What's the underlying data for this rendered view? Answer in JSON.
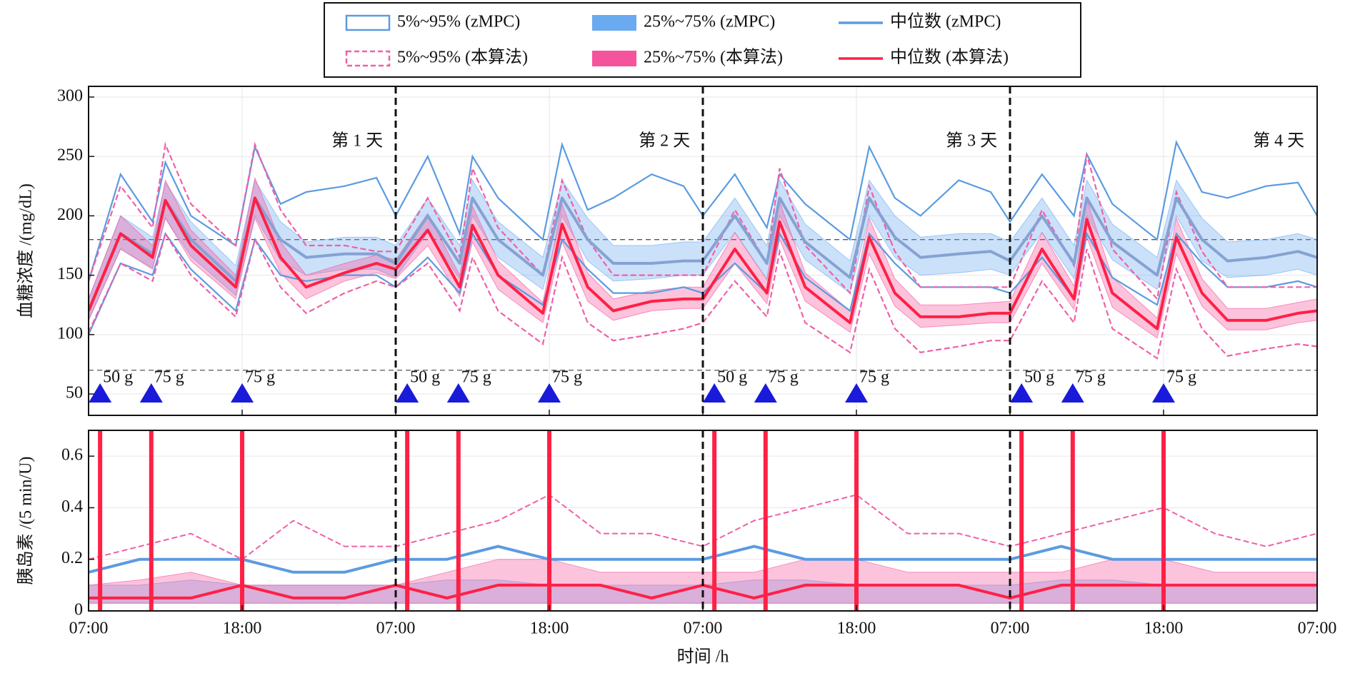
{
  "chart_data": [
    {
      "type": "line",
      "ylabel": "血糖浓度 /(mg/dL)",
      "xlim": [
        0,
        96
      ],
      "ylim": [
        32,
        309
      ],
      "xticks": [
        0,
        12,
        24,
        36,
        48,
        60,
        72,
        84,
        96
      ],
      "yticks": [
        50,
        100,
        150,
        200,
        250,
        300
      ],
      "grid": true,
      "x": [
        0,
        2.5,
        5,
        6,
        8,
        11.5,
        13,
        15,
        17,
        20,
        22.5,
        24,
        26.5,
        29,
        30,
        32,
        35.5,
        37,
        39,
        41,
        44,
        46.5,
        48,
        50.5,
        53,
        54,
        56,
        59.5,
        61,
        63,
        65,
        68,
        70.5,
        72,
        74.5,
        77,
        78,
        80,
        83.5,
        85,
        87,
        89,
        92,
        94.5,
        96
      ],
      "series": [
        {
          "name": "5%~95% (zMPC)",
          "style": "outline",
          "color": "#5b9be0",
          "low": [
            100,
            160,
            150,
            185,
            155,
            120,
            180,
            150,
            145,
            150,
            150,
            140,
            165,
            135,
            185,
            150,
            125,
            180,
            155,
            135,
            135,
            140,
            135,
            160,
            135,
            185,
            148,
            120,
            185,
            160,
            140,
            140,
            140,
            135,
            165,
            130,
            185,
            148,
            125,
            185,
            160,
            140,
            140,
            145,
            140
          ],
          "high": [
            145,
            235,
            195,
            245,
            200,
            175,
            258,
            210,
            220,
            225,
            232,
            200,
            250,
            185,
            250,
            215,
            180,
            260,
            205,
            215,
            235,
            225,
            200,
            235,
            190,
            235,
            210,
            180,
            258,
            215,
            200,
            230,
            220,
            195,
            235,
            200,
            252,
            210,
            180,
            262,
            220,
            215,
            225,
            228,
            200
          ]
        },
        {
          "name": "25%~75% (zMPC)",
          "style": "fill",
          "color": "#6aaaf0",
          "low": [
            112,
            172,
            156,
            198,
            166,
            133,
            200,
            162,
            150,
            155,
            155,
            148,
            186,
            147,
            200,
            165,
            138,
            200,
            162,
            145,
            147,
            150,
            150,
            186,
            147,
            200,
            163,
            135,
            200,
            165,
            150,
            152,
            155,
            150,
            186,
            147,
            200,
            163,
            138,
            200,
            162,
            148,
            150,
            155,
            150
          ],
          "high": [
            130,
            200,
            182,
            228,
            195,
            158,
            230,
            195,
            178,
            182,
            182,
            175,
            215,
            175,
            230,
            195,
            165,
            230,
            198,
            175,
            175,
            178,
            178,
            215,
            175,
            230,
            193,
            162,
            230,
            200,
            182,
            185,
            185,
            178,
            215,
            175,
            230,
            193,
            165,
            230,
            198,
            178,
            180,
            185,
            180
          ]
        },
        {
          "name": "中位数 (zMPC)",
          "style": "line",
          "color": "#5b9be0",
          "plot_color": "#86a2d2",
          "values": [
            120,
            185,
            168,
            213,
            180,
            145,
            215,
            180,
            165,
            168,
            168,
            160,
            200,
            160,
            215,
            180,
            150,
            215,
            180,
            160,
            160,
            162,
            162,
            200,
            160,
            215,
            178,
            148,
            215,
            182,
            165,
            168,
            170,
            162,
            200,
            160,
            215,
            178,
            150,
            215,
            180,
            162,
            165,
            170,
            165
          ]
        },
        {
          "name": "5%~95% (本算法)",
          "style": "outline",
          "dash": true,
          "color": "#f060a8",
          "low": [
            102,
            160,
            145,
            185,
            150,
            115,
            180,
            140,
            118,
            135,
            145,
            140,
            160,
            120,
            165,
            120,
            92,
            165,
            110,
            95,
            100,
            105,
            110,
            145,
            115,
            170,
            110,
            85,
            155,
            105,
            85,
            90,
            95,
            95,
            145,
            110,
            172,
            105,
            80,
            155,
            105,
            82,
            88,
            92,
            90
          ],
          "high": [
            145,
            225,
            190,
            260,
            210,
            175,
            260,
            205,
            175,
            175,
            170,
            170,
            215,
            165,
            240,
            190,
            150,
            230,
            180,
            150,
            150,
            150,
            150,
            205,
            160,
            240,
            175,
            135,
            225,
            170,
            140,
            140,
            140,
            140,
            205,
            158,
            252,
            172,
            130,
            220,
            170,
            140,
            140,
            140,
            140
          ]
        },
        {
          "name": "25%~75% (本算法)",
          "style": "fill",
          "color": "#f5539c",
          "low": [
            112,
            172,
            155,
            198,
            162,
            130,
            198,
            152,
            130,
            145,
            152,
            147,
            175,
            132,
            178,
            138,
            110,
            178,
            128,
            112,
            120,
            122,
            122,
            160,
            126,
            180,
            128,
            102,
            168,
            124,
            106,
            108,
            110,
            110,
            160,
            121,
            182,
            123,
            97,
            168,
            124,
            104,
            104,
            110,
            112
          ],
          "high": [
            130,
            200,
            175,
            230,
            188,
            150,
            232,
            178,
            150,
            160,
            167,
            163,
            202,
            150,
            208,
            162,
            127,
            210,
            152,
            130,
            137,
            140,
            140,
            186,
            146,
            212,
            152,
            120,
            198,
            147,
            125,
            125,
            127,
            128,
            186,
            141,
            214,
            148,
            114,
            198,
            147,
            122,
            122,
            127,
            130
          ]
        },
        {
          "name": "中位数 (本算法)",
          "style": "line",
          "color": "#ff2045",
          "values": [
            120,
            185,
            165,
            213,
            175,
            140,
            215,
            165,
            140,
            152,
            160,
            155,
            188,
            140,
            192,
            150,
            118,
            193,
            140,
            120,
            128,
            130,
            130,
            172,
            135,
            195,
            140,
            110,
            182,
            135,
            115,
            115,
            118,
            118,
            172,
            130,
            197,
            135,
            105,
            182,
            135,
            112,
            112,
            118,
            120
          ]
        }
      ],
      "ref_lines": [
        180,
        70
      ],
      "day_lines": [
        24,
        48,
        72
      ],
      "day_labels": {
        "x": [
          23,
          47,
          71,
          95
        ],
        "labels": [
          "第 1 天",
          "第 2 天",
          "第 3 天",
          "第 4 天"
        ]
      },
      "meals": {
        "y": 50,
        "x": [
          0.9,
          4.9,
          12,
          24.9,
          28.9,
          36,
          48.9,
          52.9,
          60,
          72.9,
          76.9,
          84
        ],
        "labels": [
          "50 g",
          "75 g",
          "75 g",
          "50 g",
          "75 g",
          "75 g",
          "50 g",
          "75 g",
          "75 g",
          "50 g",
          "75 g",
          "75 g"
        ]
      }
    },
    {
      "type": "line",
      "ylabel": "胰岛素 /(5 min/U)",
      "xlabel": "时间 /h",
      "xlim": [
        0,
        96
      ],
      "ylim": [
        0,
        0.7
      ],
      "xticks": [
        {
          "value": 0,
          "label": "07:00"
        },
        {
          "value": 12,
          "label": "18:00"
        },
        {
          "value": 24,
          "label": "07:00"
        },
        {
          "value": 36,
          "label": "18:00"
        },
        {
          "value": 48,
          "label": "07:00"
        },
        {
          "value": 60,
          "label": "18:00"
        },
        {
          "value": 72,
          "label": "07:00"
        },
        {
          "value": 84,
          "label": "18:00"
        },
        {
          "value": 96,
          "label": "07:00"
        }
      ],
      "yticks": [
        0,
        0.2,
        0.4,
        0.6
      ],
      "grid": true,
      "x": [
        0,
        4,
        8,
        12,
        16,
        20,
        24,
        28,
        32,
        36,
        40,
        44,
        48,
        52,
        56,
        60,
        64,
        68,
        72,
        76,
        80,
        84,
        88,
        92,
        96
      ],
      "series": [
        {
          "style": "fill",
          "color": "#6aaaf0",
          "low": [
            0.03,
            0.03,
            0.03,
            0.03,
            0.03,
            0.03,
            0.03,
            0.03,
            0.03,
            0.03,
            0.03,
            0.03,
            0.03,
            0.03,
            0.03,
            0.03,
            0.03,
            0.03,
            0.03,
            0.03,
            0.03,
            0.03,
            0.03,
            0.03,
            0.03
          ],
          "high": [
            0.1,
            0.1,
            0.12,
            0.1,
            0.1,
            0.1,
            0.1,
            0.12,
            0.12,
            0.1,
            0.1,
            0.1,
            0.1,
            0.12,
            0.12,
            0.1,
            0.1,
            0.1,
            0.1,
            0.12,
            0.12,
            0.1,
            0.1,
            0.1,
            0.1
          ]
        },
        {
          "style": "fill",
          "color": "#f5539c",
          "low": [
            0.03,
            0.03,
            0.03,
            0.03,
            0.03,
            0.03,
            0.03,
            0.03,
            0.03,
            0.03,
            0.03,
            0.03,
            0.03,
            0.03,
            0.03,
            0.03,
            0.03,
            0.03,
            0.03,
            0.03,
            0.03,
            0.03,
            0.03,
            0.03,
            0.03
          ],
          "high": [
            0.1,
            0.12,
            0.15,
            0.1,
            0.1,
            0.1,
            0.1,
            0.15,
            0.2,
            0.2,
            0.15,
            0.15,
            0.15,
            0.15,
            0.2,
            0.2,
            0.15,
            0.15,
            0.15,
            0.15,
            0.2,
            0.2,
            0.15,
            0.15,
            0.15
          ]
        },
        {
          "style": "line",
          "color": "#5b9be0",
          "values": [
            0.15,
            0.2,
            0.2,
            0.2,
            0.15,
            0.15,
            0.2,
            0.2,
            0.25,
            0.2,
            0.2,
            0.2,
            0.2,
            0.25,
            0.2,
            0.2,
            0.2,
            0.2,
            0.2,
            0.25,
            0.2,
            0.2,
            0.2,
            0.2,
            0.2
          ]
        },
        {
          "style": "line",
          "dash": true,
          "color": "#f060a8",
          "values": [
            0.2,
            0.25,
            0.3,
            0.2,
            0.35,
            0.25,
            0.25,
            0.3,
            0.35,
            0.45,
            0.3,
            0.3,
            0.25,
            0.35,
            0.4,
            0.45,
            0.3,
            0.3,
            0.25,
            0.3,
            0.35,
            0.4,
            0.3,
            0.25,
            0.3
          ]
        },
        {
          "style": "line",
          "color": "#ff2045",
          "values": [
            0.05,
            0.05,
            0.05,
            0.1,
            0.05,
            0.05,
            0.1,
            0.05,
            0.1,
            0.1,
            0.1,
            0.05,
            0.1,
            0.05,
            0.1,
            0.1,
            0.1,
            0.1,
            0.05,
            0.1,
            0.1,
            0.1,
            0.1,
            0.1,
            0.1
          ]
        }
      ],
      "spikes": {
        "color": "#ff2045",
        "x": [
          0.9,
          4.9,
          12,
          24.9,
          28.9,
          36,
          48.9,
          52.9,
          60,
          72.9,
          76.9,
          84
        ],
        "values": [
          0.7,
          0.7,
          0.7,
          0.7,
          0.7,
          0.7,
          0.7,
          0.7,
          0.7,
          0.7,
          0.7,
          0.7
        ]
      },
      "day_lines": [
        24,
        48,
        72
      ]
    }
  ]
}
